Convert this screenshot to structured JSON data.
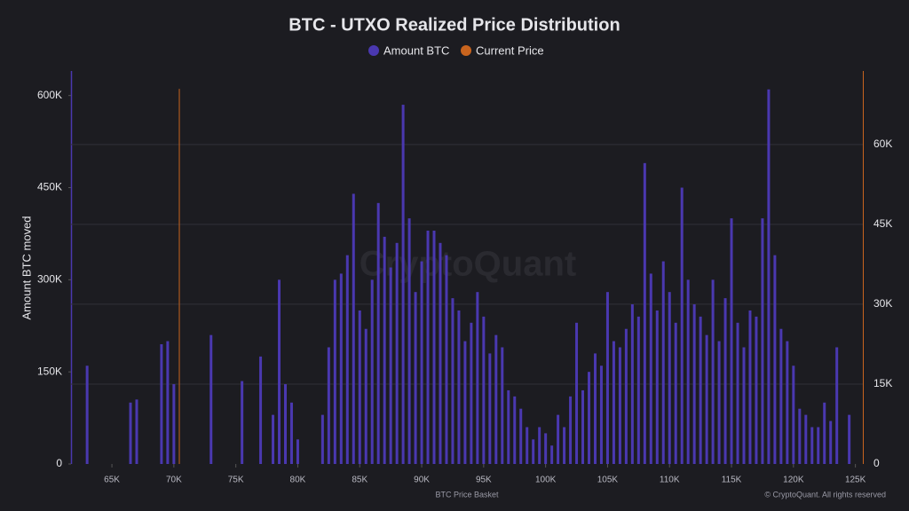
{
  "chart_data": {
    "type": "bar",
    "title": "BTC - UTXO Realized Price Distribution",
    "watermark": "CryptoQuant",
    "footer": "© CryptoQuant. All rights reserved",
    "xlabel": "BTC Price Basket",
    "ylabel": "Amount BTC moved",
    "xlim": [
      61700,
      125600
    ],
    "ylim": [
      0,
      640000
    ],
    "y2lim": [
      0,
      73800
    ],
    "xticks": [
      {
        "value": 65000,
        "label": "65K"
      },
      {
        "value": 70000,
        "label": "70K"
      },
      {
        "value": 75000,
        "label": "75K"
      },
      {
        "value": 80000,
        "label": "80K"
      },
      {
        "value": 85000,
        "label": "85K"
      },
      {
        "value": 90000,
        "label": "90K"
      },
      {
        "value": 95000,
        "label": "95K"
      },
      {
        "value": 100000,
        "label": "100K"
      },
      {
        "value": 105000,
        "label": "105K"
      },
      {
        "value": 110000,
        "label": "110K"
      },
      {
        "value": 115000,
        "label": "115K"
      },
      {
        "value": 120000,
        "label": "120K"
      },
      {
        "value": 125000,
        "label": "125K"
      }
    ],
    "yticks": [
      0,
      {
        "value": 150000,
        "label": "150K"
      },
      {
        "value": 300000,
        "label": "300K"
      },
      {
        "value": 450000,
        "label": "450K"
      },
      {
        "value": 600000,
        "label": "600K"
      }
    ],
    "y2ticks": [
      0,
      {
        "value": 15000,
        "label": "15K"
      },
      {
        "value": 30000,
        "label": "30K"
      },
      {
        "value": 45000,
        "label": "45K"
      },
      {
        "value": 60000,
        "label": "60K"
      }
    ],
    "grid": "y2",
    "legend": "top",
    "series": [
      {
        "name": "Amount BTC",
        "color": "#4a38b0",
        "x": [
          62000,
          62500,
          63000,
          63500,
          64000,
          64500,
          65000,
          65500,
          66000,
          66500,
          67000,
          67500,
          68000,
          68500,
          69000,
          69500,
          70000,
          70500,
          71000,
          71500,
          72000,
          72500,
          73000,
          73500,
          74000,
          74500,
          75000,
          75500,
          76000,
          76500,
          77000,
          77500,
          78000,
          78500,
          79000,
          79500,
          80000,
          80500,
          81000,
          81500,
          82000,
          82500,
          83000,
          83500,
          84000,
          84500,
          85000,
          85500,
          86000,
          86500,
          87000,
          87500,
          88000,
          88500,
          89000,
          89500,
          90000,
          90500,
          91000,
          91500,
          92000,
          92500,
          93000,
          93500,
          94000,
          94500,
          95000,
          95500,
          96000,
          96500,
          97000,
          97500,
          98000,
          98500,
          99000,
          99500,
          100000,
          100500,
          101000,
          101500,
          102000,
          102500,
          103000,
          103500,
          104000,
          104500,
          105000,
          105500,
          106000,
          106500,
          107000,
          107500,
          108000,
          108500,
          109000,
          109500,
          110000,
          110500,
          111000,
          111500,
          112000,
          112500,
          113000,
          113500,
          114000,
          114500,
          115000,
          115500,
          116000,
          116500,
          117000,
          117500,
          118000,
          118500,
          119000,
          119500,
          120000,
          120500,
          121000,
          121500,
          122000,
          122500,
          123000,
          123500,
          124000,
          124500
        ],
        "values": [
          0,
          0,
          160000,
          0,
          0,
          0,
          0,
          0,
          0,
          100000,
          105000,
          0,
          0,
          0,
          195000,
          200000,
          130000,
          0,
          0,
          0,
          0,
          0,
          210000,
          0,
          0,
          0,
          0,
          135000,
          0,
          0,
          175000,
          0,
          80000,
          300000,
          130000,
          100000,
          40000,
          0,
          0,
          0,
          80000,
          190000,
          300000,
          310000,
          340000,
          440000,
          250000,
          220000,
          300000,
          425000,
          370000,
          320000,
          360000,
          585000,
          400000,
          280000,
          330000,
          380000,
          380000,
          360000,
          340000,
          270000,
          250000,
          200000,
          230000,
          280000,
          240000,
          180000,
          210000,
          190000,
          120000,
          110000,
          90000,
          60000,
          40000,
          60000,
          50000,
          30000,
          80000,
          60000,
          110000,
          230000,
          120000,
          150000,
          180000,
          160000,
          280000,
          200000,
          190000,
          220000,
          260000,
          240000,
          490000,
          310000,
          250000,
          330000,
          280000,
          230000,
          450000,
          300000,
          260000,
          240000,
          210000,
          300000,
          200000,
          270000,
          400000,
          230000,
          190000,
          250000,
          240000,
          400000,
          610000,
          340000,
          220000,
          200000,
          160000,
          90000,
          80000,
          60000,
          60000,
          100000,
          70000,
          190000,
          0,
          80000
        ]
      },
      {
        "name": "Current Price",
        "color": "#c8641e",
        "axis": "y2",
        "x": [
          70440
        ],
        "values": [
          70440
        ]
      }
    ]
  }
}
